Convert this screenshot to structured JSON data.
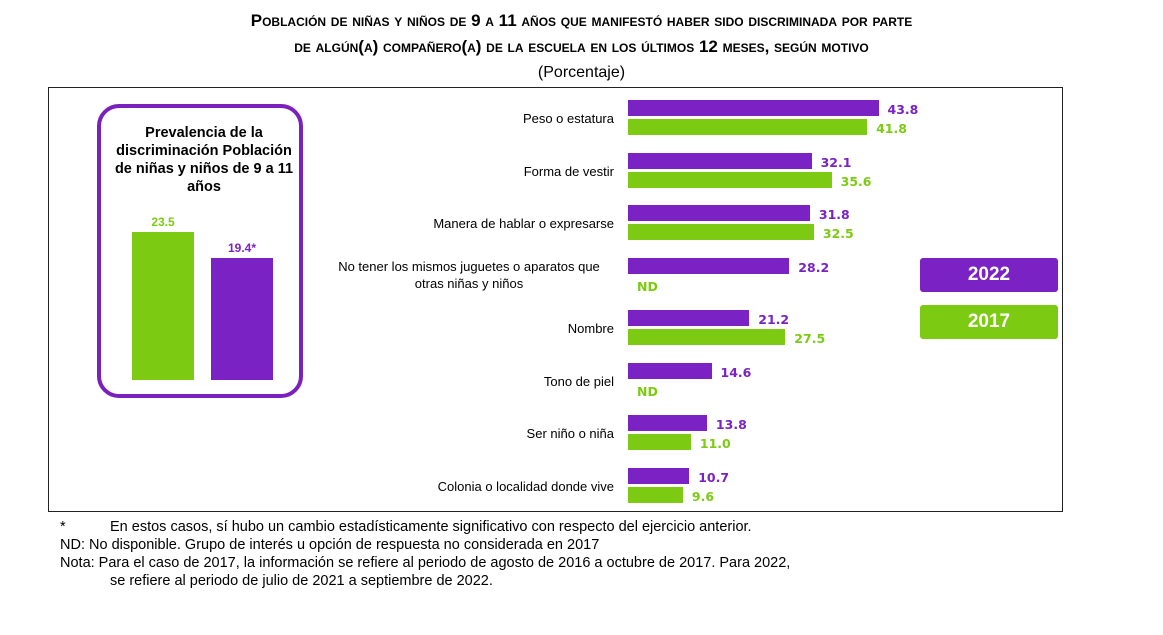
{
  "title_line1": "Población de niñas y niños de 9 a 11 años que manifestó haber sido discriminada por parte",
  "title_line2": "de algún(a) compañero(a) de la escuela en los últimos 12 meses, según motivo",
  "subtitle": "(Porcentaje)",
  "prevalence": {
    "title": "Prevalencia de la discriminación Población de niñas y niños de 9 a 11 años",
    "bars": [
      {
        "year": "2017",
        "value": 23.5,
        "label": "23.5"
      },
      {
        "year": "2022",
        "value": 19.4,
        "label": "19.4*"
      }
    ]
  },
  "legend": {
    "y2022": "2022",
    "y2017": "2017"
  },
  "colors": {
    "y2022": "#7b22c4",
    "y2017": "#7ccb12"
  },
  "chart_data": {
    "type": "bar",
    "orientation": "horizontal",
    "categories": [
      "Peso o estatura",
      "Forma de vestir",
      "Manera de hablar o expresarse",
      "No tener los mismos juguetes o aparatos que otras niñas y niños",
      "Nombre",
      "Tono de piel",
      "Ser niño o niña",
      "Colonia o localidad donde vive"
    ],
    "series": [
      {
        "name": "2022",
        "values": [
          43.8,
          32.1,
          31.8,
          28.2,
          21.2,
          14.6,
          13.8,
          10.7
        ]
      },
      {
        "name": "2017",
        "values": [
          41.8,
          35.6,
          32.5,
          null,
          27.5,
          null,
          11.0,
          9.6
        ]
      }
    ],
    "value_labels": {
      "2022": [
        "43.8",
        "32.1",
        "31.8",
        "28.2",
        "21.2",
        "14.6",
        "13.8",
        "10.7"
      ],
      "2017": [
        "41.8",
        "35.6",
        "32.5",
        "ND",
        "27.5",
        "ND",
        "11.0",
        "9.6"
      ]
    },
    "legend_position": "right",
    "grid": false
  },
  "notes": {
    "asterisk_mark": "*",
    "asterisk_text": "En estos casos, sí hubo un cambio estadísticamente significativo con respecto del ejercicio anterior.",
    "nd_text": "ND:  No disponible. Grupo de interés u opción de respuesta no considerada en 2017",
    "nota_line1": "Nota: Para el caso de 2017, la información se refiere al periodo de agosto de 2016 a octubre de 2017. Para 2022,",
    "nota_line2": "se refiere al periodo de julio de 2021 a septiembre de 2022."
  }
}
